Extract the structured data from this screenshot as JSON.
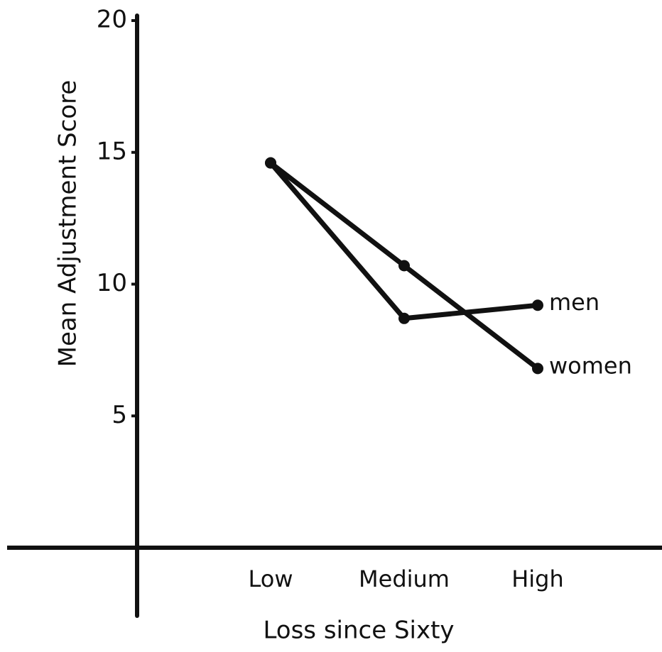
{
  "chart_data": {
    "type": "line",
    "categories": [
      "Low",
      "Medium",
      "High"
    ],
    "series": [
      {
        "name": "men",
        "color": "#111111",
        "values": [
          14.6,
          8.7,
          9.2
        ]
      },
      {
        "name": "women",
        "color": "#111111",
        "values": [
          14.6,
          10.7,
          6.8
        ]
      }
    ],
    "xlabel": "Loss since Sixty",
    "ylabel": "Mean Adjustment Score",
    "ylim": [
      0,
      20
    ],
    "yticks": [
      5,
      10,
      15,
      20
    ],
    "grid": false
  }
}
